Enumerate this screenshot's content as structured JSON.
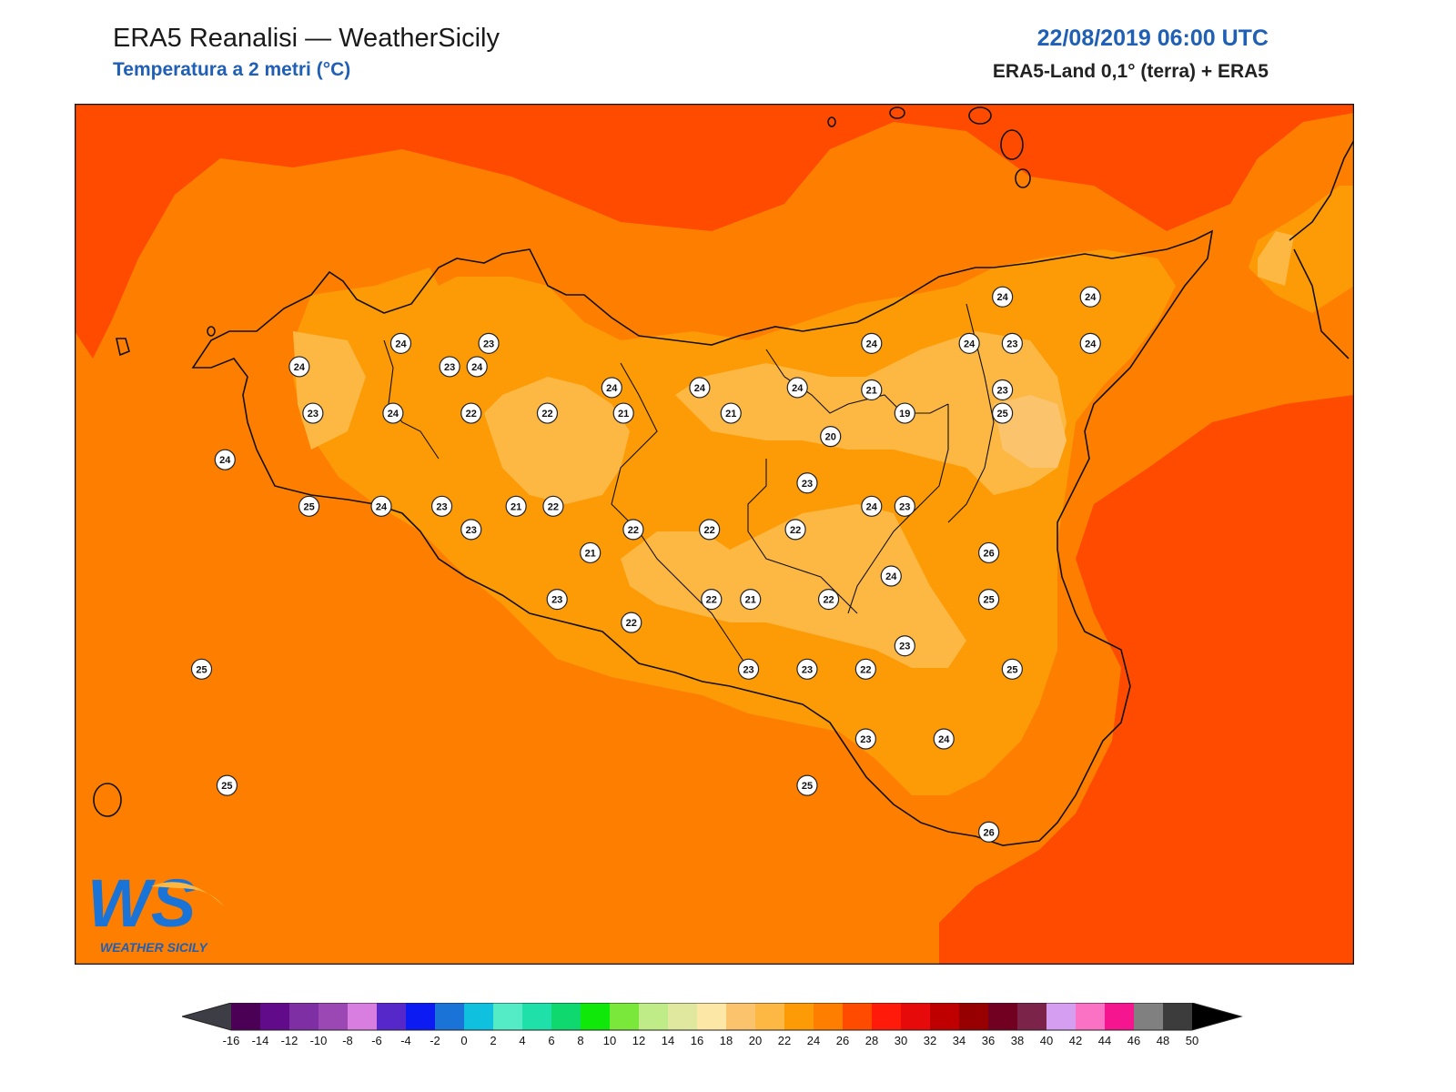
{
  "header": {
    "title": "ERA5 Reanalisi — WeatherSicily",
    "subtitle": "Temperatura a 2 metri (°C)",
    "datetime": "22/08/2019 06:00 UTC",
    "source": "ERA5-Land 0,1° (terra) + ERA5"
  },
  "logo": {
    "text": "WS",
    "caption": "WEATHER SICILY"
  },
  "station_values": [
    {
      "lon": 12.45,
      "lat": 38.12,
      "t": "24"
    },
    {
      "lon": 13.36,
      "lat": 38.12,
      "t": "24"
    },
    {
      "lon": 14.05,
      "lat": 38.03,
      "t": "24"
    },
    {
      "lon": 14.5,
      "lat": 38.03,
      "t": "24"
    },
    {
      "lon": 15.0,
      "lat": 38.03,
      "t": "24"
    },
    {
      "lon": 12.97,
      "lat": 38.22,
      "t": "24"
    },
    {
      "lon": 13.42,
      "lat": 38.22,
      "t": "23"
    },
    {
      "lon": 13.22,
      "lat": 38.12,
      "t": "23"
    },
    {
      "lon": 12.87,
      "lat": 37.52,
      "t": "24"
    },
    {
      "lon": 13.18,
      "lat": 37.52,
      "t": "23"
    },
    {
      "lon": 12.5,
      "lat": 37.52,
      "t": "25"
    },
    {
      "lon": 12.07,
      "lat": 37.72,
      "t": "24"
    },
    {
      "lon": 12.52,
      "lat": 37.92,
      "t": "23"
    },
    {
      "lon": 12.93,
      "lat": 37.92,
      "t": "24"
    },
    {
      "lon": 13.33,
      "lat": 37.92,
      "t": "22"
    },
    {
      "lon": 13.72,
      "lat": 37.92,
      "t": "22"
    },
    {
      "lon": 14.11,
      "lat": 37.92,
      "t": "21"
    },
    {
      "lon": 14.66,
      "lat": 37.92,
      "t": "21"
    },
    {
      "lon": 13.75,
      "lat": 37.52,
      "t": "22"
    },
    {
      "lon": 13.56,
      "lat": 37.52,
      "t": "21"
    },
    {
      "lon": 13.33,
      "lat": 37.42,
      "t": "23"
    },
    {
      "lon": 14.16,
      "lat": 37.42,
      "t": "22"
    },
    {
      "lon": 14.55,
      "lat": 37.42,
      "t": "22"
    },
    {
      "lon": 13.94,
      "lat": 37.32,
      "t": "21"
    },
    {
      "lon": 13.77,
      "lat": 37.12,
      "t": "23"
    },
    {
      "lon": 14.15,
      "lat": 37.02,
      "t": "22"
    },
    {
      "lon": 14.56,
      "lat": 37.12,
      "t": "22"
    },
    {
      "lon": 14.76,
      "lat": 37.12,
      "t": "21"
    },
    {
      "lon": 14.99,
      "lat": 37.42,
      "t": "22"
    },
    {
      "lon": 15.16,
      "lat": 37.12,
      "t": "22"
    },
    {
      "lon": 15.05,
      "lat": 37.62,
      "t": "23"
    },
    {
      "lon": 15.17,
      "lat": 37.82,
      "t": "20"
    },
    {
      "lon": 15.38,
      "lat": 37.52,
      "t": "24"
    },
    {
      "lon": 15.55,
      "lat": 37.52,
      "t": "23"
    },
    {
      "lon": 15.55,
      "lat": 37.92,
      "t": "19"
    },
    {
      "lon": 15.38,
      "lat": 38.02,
      "t": "21"
    },
    {
      "lon": 15.38,
      "lat": 38.22,
      "t": "24"
    },
    {
      "lon": 15.88,
      "lat": 38.22,
      "t": "24"
    },
    {
      "lon": 16.1,
      "lat": 38.22,
      "t": "23"
    },
    {
      "lon": 16.05,
      "lat": 38.02,
      "t": "23"
    },
    {
      "lon": 16.5,
      "lat": 38.22,
      "t": "24"
    },
    {
      "lon": 16.05,
      "lat": 38.42,
      "t": "24"
    },
    {
      "lon": 16.5,
      "lat": 38.42,
      "t": "24"
    },
    {
      "lon": 16.05,
      "lat": 37.92,
      "t": "25"
    },
    {
      "lon": 15.98,
      "lat": 37.32,
      "t": "26"
    },
    {
      "lon": 15.98,
      "lat": 37.12,
      "t": "25"
    },
    {
      "lon": 15.48,
      "lat": 37.22,
      "t": "24"
    },
    {
      "lon": 15.55,
      "lat": 36.92,
      "t": "23"
    },
    {
      "lon": 15.05,
      "lat": 36.82,
      "t": "23"
    },
    {
      "lon": 14.75,
      "lat": 36.82,
      "t": "23"
    },
    {
      "lon": 15.35,
      "lat": 36.82,
      "t": "22"
    },
    {
      "lon": 16.1,
      "lat": 36.82,
      "t": "25"
    },
    {
      "lon": 15.35,
      "lat": 36.52,
      "t": "23"
    },
    {
      "lon": 15.75,
      "lat": 36.52,
      "t": "24"
    },
    {
      "lon": 15.05,
      "lat": 36.32,
      "t": "25"
    },
    {
      "lon": 15.98,
      "lat": 36.12,
      "t": "26"
    },
    {
      "lon": 11.95,
      "lat": 36.82,
      "t": "25"
    },
    {
      "lon": 12.08,
      "lat": 36.32,
      "t": "25"
    }
  ],
  "colorbar": {
    "labels": [
      "-16",
      "-14",
      "-12",
      "-10",
      "-8",
      "-6",
      "-4",
      "-2",
      "0",
      "2",
      "4",
      "6",
      "8",
      "10",
      "12",
      "14",
      "16",
      "18",
      "20",
      "22",
      "24",
      "26",
      "28",
      "30",
      "32",
      "34",
      "36",
      "38",
      "40",
      "42",
      "44",
      "46",
      "48",
      "50"
    ],
    "colors": [
      "#4b0055",
      "#620b8a",
      "#7e2fa3",
      "#9b48b5",
      "#d87ee0",
      "#5728c9",
      "#0b1bf2",
      "#1a73d6",
      "#0fc0df",
      "#53ecc6",
      "#1ee0a8",
      "#0fd86e",
      "#10e80a",
      "#79e83a",
      "#c0ec88",
      "#e0e8a0",
      "#fde7a6",
      "#fbc36c",
      "#fdb844",
      "#fd9b06",
      "#fe7f00",
      "#fe4b00",
      "#ff1a0a",
      "#e60a0a",
      "#bf0000",
      "#970000",
      "#710021",
      "#7b2348",
      "#d59ef0",
      "#fb71c4",
      "#f5158f",
      "#808080",
      "#3c3c3c"
    ],
    "under_color": "#3d3d45",
    "over_color": "#000000"
  }
}
